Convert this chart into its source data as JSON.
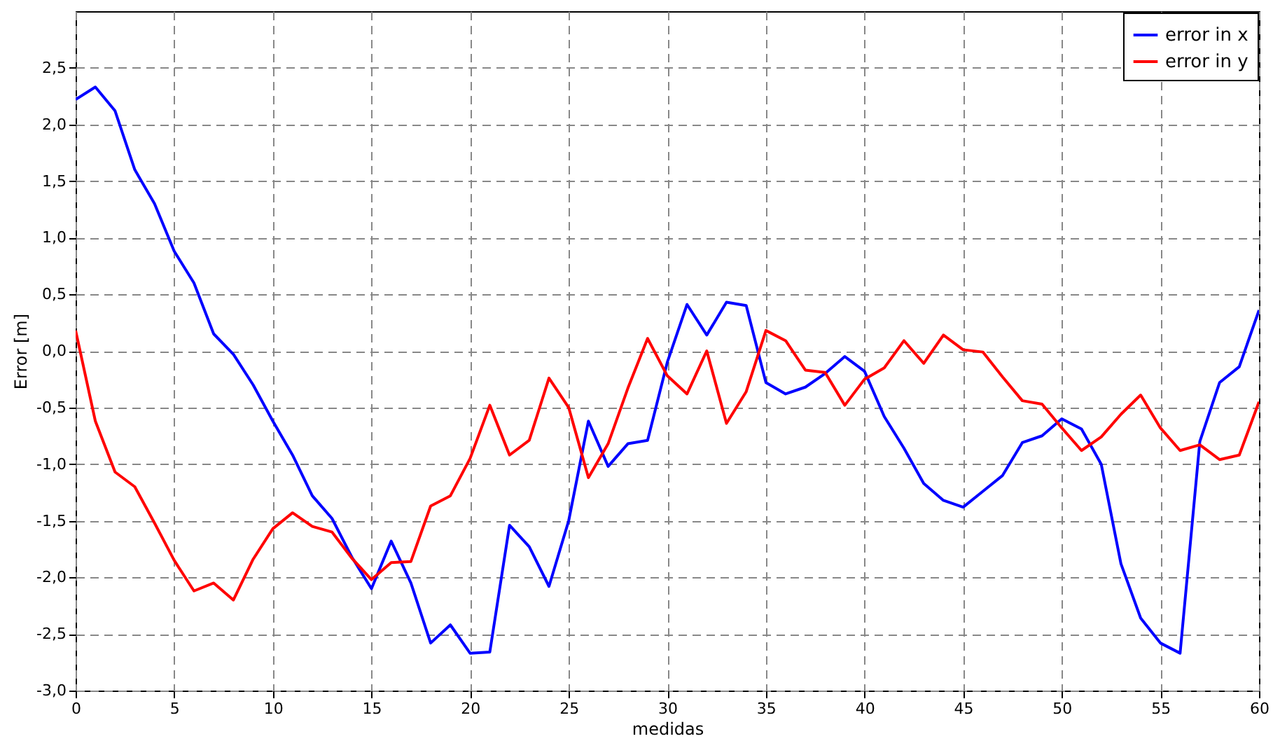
{
  "chart_data": {
    "type": "line",
    "xlabel": "medidas",
    "ylabel": "Error [m]",
    "x": [
      0,
      1,
      2,
      3,
      4,
      5,
      6,
      7,
      8,
      9,
      10,
      11,
      12,
      13,
      14,
      15,
      16,
      17,
      18,
      19,
      20,
      21,
      22,
      23,
      24,
      25,
      26,
      27,
      28,
      29,
      30,
      31,
      32,
      33,
      34,
      35,
      36,
      37,
      38,
      39,
      40,
      41,
      42,
      43,
      44,
      45,
      46,
      47,
      48,
      49,
      50,
      51,
      52,
      53,
      54,
      55,
      56,
      57,
      58,
      59,
      60
    ],
    "series": [
      {
        "name": "error in x",
        "color": "#0000ff",
        "values": [
          2.22,
          2.33,
          2.12,
          1.6,
          1.3,
          0.88,
          0.6,
          0.15,
          -0.03,
          -0.3,
          -0.62,
          -0.92,
          -1.28,
          -1.48,
          -1.82,
          -2.1,
          -1.68,
          -2.05,
          -2.58,
          -2.42,
          -2.67,
          -2.66,
          -1.54,
          -1.73,
          -2.08,
          -1.5,
          -0.62,
          -1.02,
          -0.82,
          -0.79,
          -0.1,
          0.41,
          0.14,
          0.43,
          0.4,
          -0.28,
          -0.38,
          -0.32,
          -0.2,
          -0.05,
          -0.18,
          -0.58,
          -0.86,
          -1.17,
          -1.32,
          -1.38,
          -1.24,
          -1.1,
          -0.81,
          -0.75,
          -0.6,
          -0.69,
          -1.0,
          -1.88,
          -2.36,
          -2.58,
          -2.67,
          -0.8,
          -0.28,
          -0.14,
          0.36
        ]
      },
      {
        "name": "error in y",
        "color": "#ff0000",
        "values": [
          0.18,
          -0.62,
          -1.07,
          -1.2,
          -1.52,
          -1.85,
          -2.12,
          -2.05,
          -2.2,
          -1.84,
          -1.57,
          -1.43,
          -1.55,
          -1.6,
          -1.83,
          -2.02,
          -1.87,
          -1.86,
          -1.37,
          -1.28,
          -0.95,
          -0.48,
          -0.92,
          -0.79,
          -0.24,
          -0.5,
          -1.12,
          -0.82,
          -0.33,
          0.11,
          -0.22,
          -0.38,
          0.0,
          -0.64,
          -0.36,
          0.18,
          0.09,
          -0.17,
          -0.19,
          -0.48,
          -0.25,
          -0.15,
          0.09,
          -0.11,
          0.14,
          0.01,
          -0.01,
          -0.23,
          -0.44,
          -0.47,
          -0.68,
          -0.88,
          -0.76,
          -0.56,
          -0.39,
          -0.68,
          -0.88,
          -0.83,
          -0.96,
          -0.92,
          -0.45
        ]
      }
    ],
    "xlim": [
      0,
      60
    ],
    "xticks": [
      0,
      5,
      10,
      15,
      20,
      25,
      30,
      35,
      40,
      45,
      50,
      55,
      60
    ],
    "ylim": [
      -3,
      3
    ],
    "yticks": [
      {
        "value": -3,
        "label": "-3,0"
      },
      {
        "value": -2.5,
        "label": "-2,5"
      },
      {
        "value": -2,
        "label": "-2,0"
      },
      {
        "value": -1.5,
        "label": "-1,5"
      },
      {
        "value": -1,
        "label": "-1,0"
      },
      {
        "value": -0.5,
        "label": "-0,5"
      },
      {
        "value": 0,
        "label": "0,0"
      },
      {
        "value": 0.5,
        "label": "0,5"
      },
      {
        "value": 1,
        "label": "1,0"
      },
      {
        "value": 1.5,
        "label": "1,5"
      },
      {
        "value": 2,
        "label": "2,0"
      },
      {
        "value": 2.5,
        "label": "2,5"
      }
    ],
    "grid": true,
    "legend": "top right",
    "marker": "none",
    "line_style": "solid"
  }
}
